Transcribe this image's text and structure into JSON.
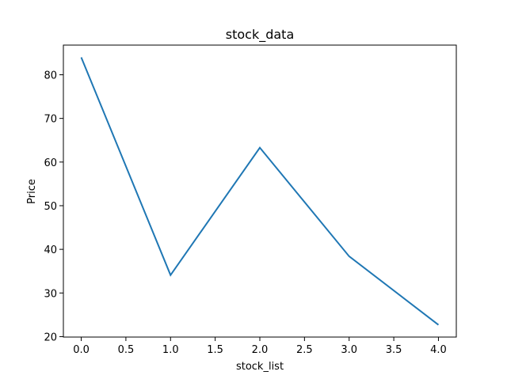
{
  "chart_data": {
    "type": "line",
    "title": "stock_data",
    "xlabel": "stock_list",
    "ylabel": "Price",
    "x": [
      0,
      1,
      2,
      3,
      4
    ],
    "series": [
      {
        "name": "Price",
        "values": [
          84.0,
          34.1,
          63.3,
          38.4,
          22.7
        ],
        "color": "#1f77b4"
      }
    ],
    "xlim": [
      -0.2,
      4.2
    ],
    "ylim": [
      19.9,
      86.8
    ],
    "xticks": [
      0.0,
      0.5,
      1.0,
      1.5,
      2.0,
      2.5,
      3.0,
      3.5,
      4.0
    ],
    "xtick_labels": [
      "0.0",
      "0.5",
      "1.0",
      "1.5",
      "2.0",
      "2.5",
      "3.0",
      "3.5",
      "4.0"
    ],
    "yticks": [
      20,
      30,
      40,
      50,
      60,
      70,
      80
    ],
    "ytick_labels": [
      "20",
      "30",
      "40",
      "50",
      "60",
      "70",
      "80"
    ],
    "grid": false,
    "legend": false
  }
}
